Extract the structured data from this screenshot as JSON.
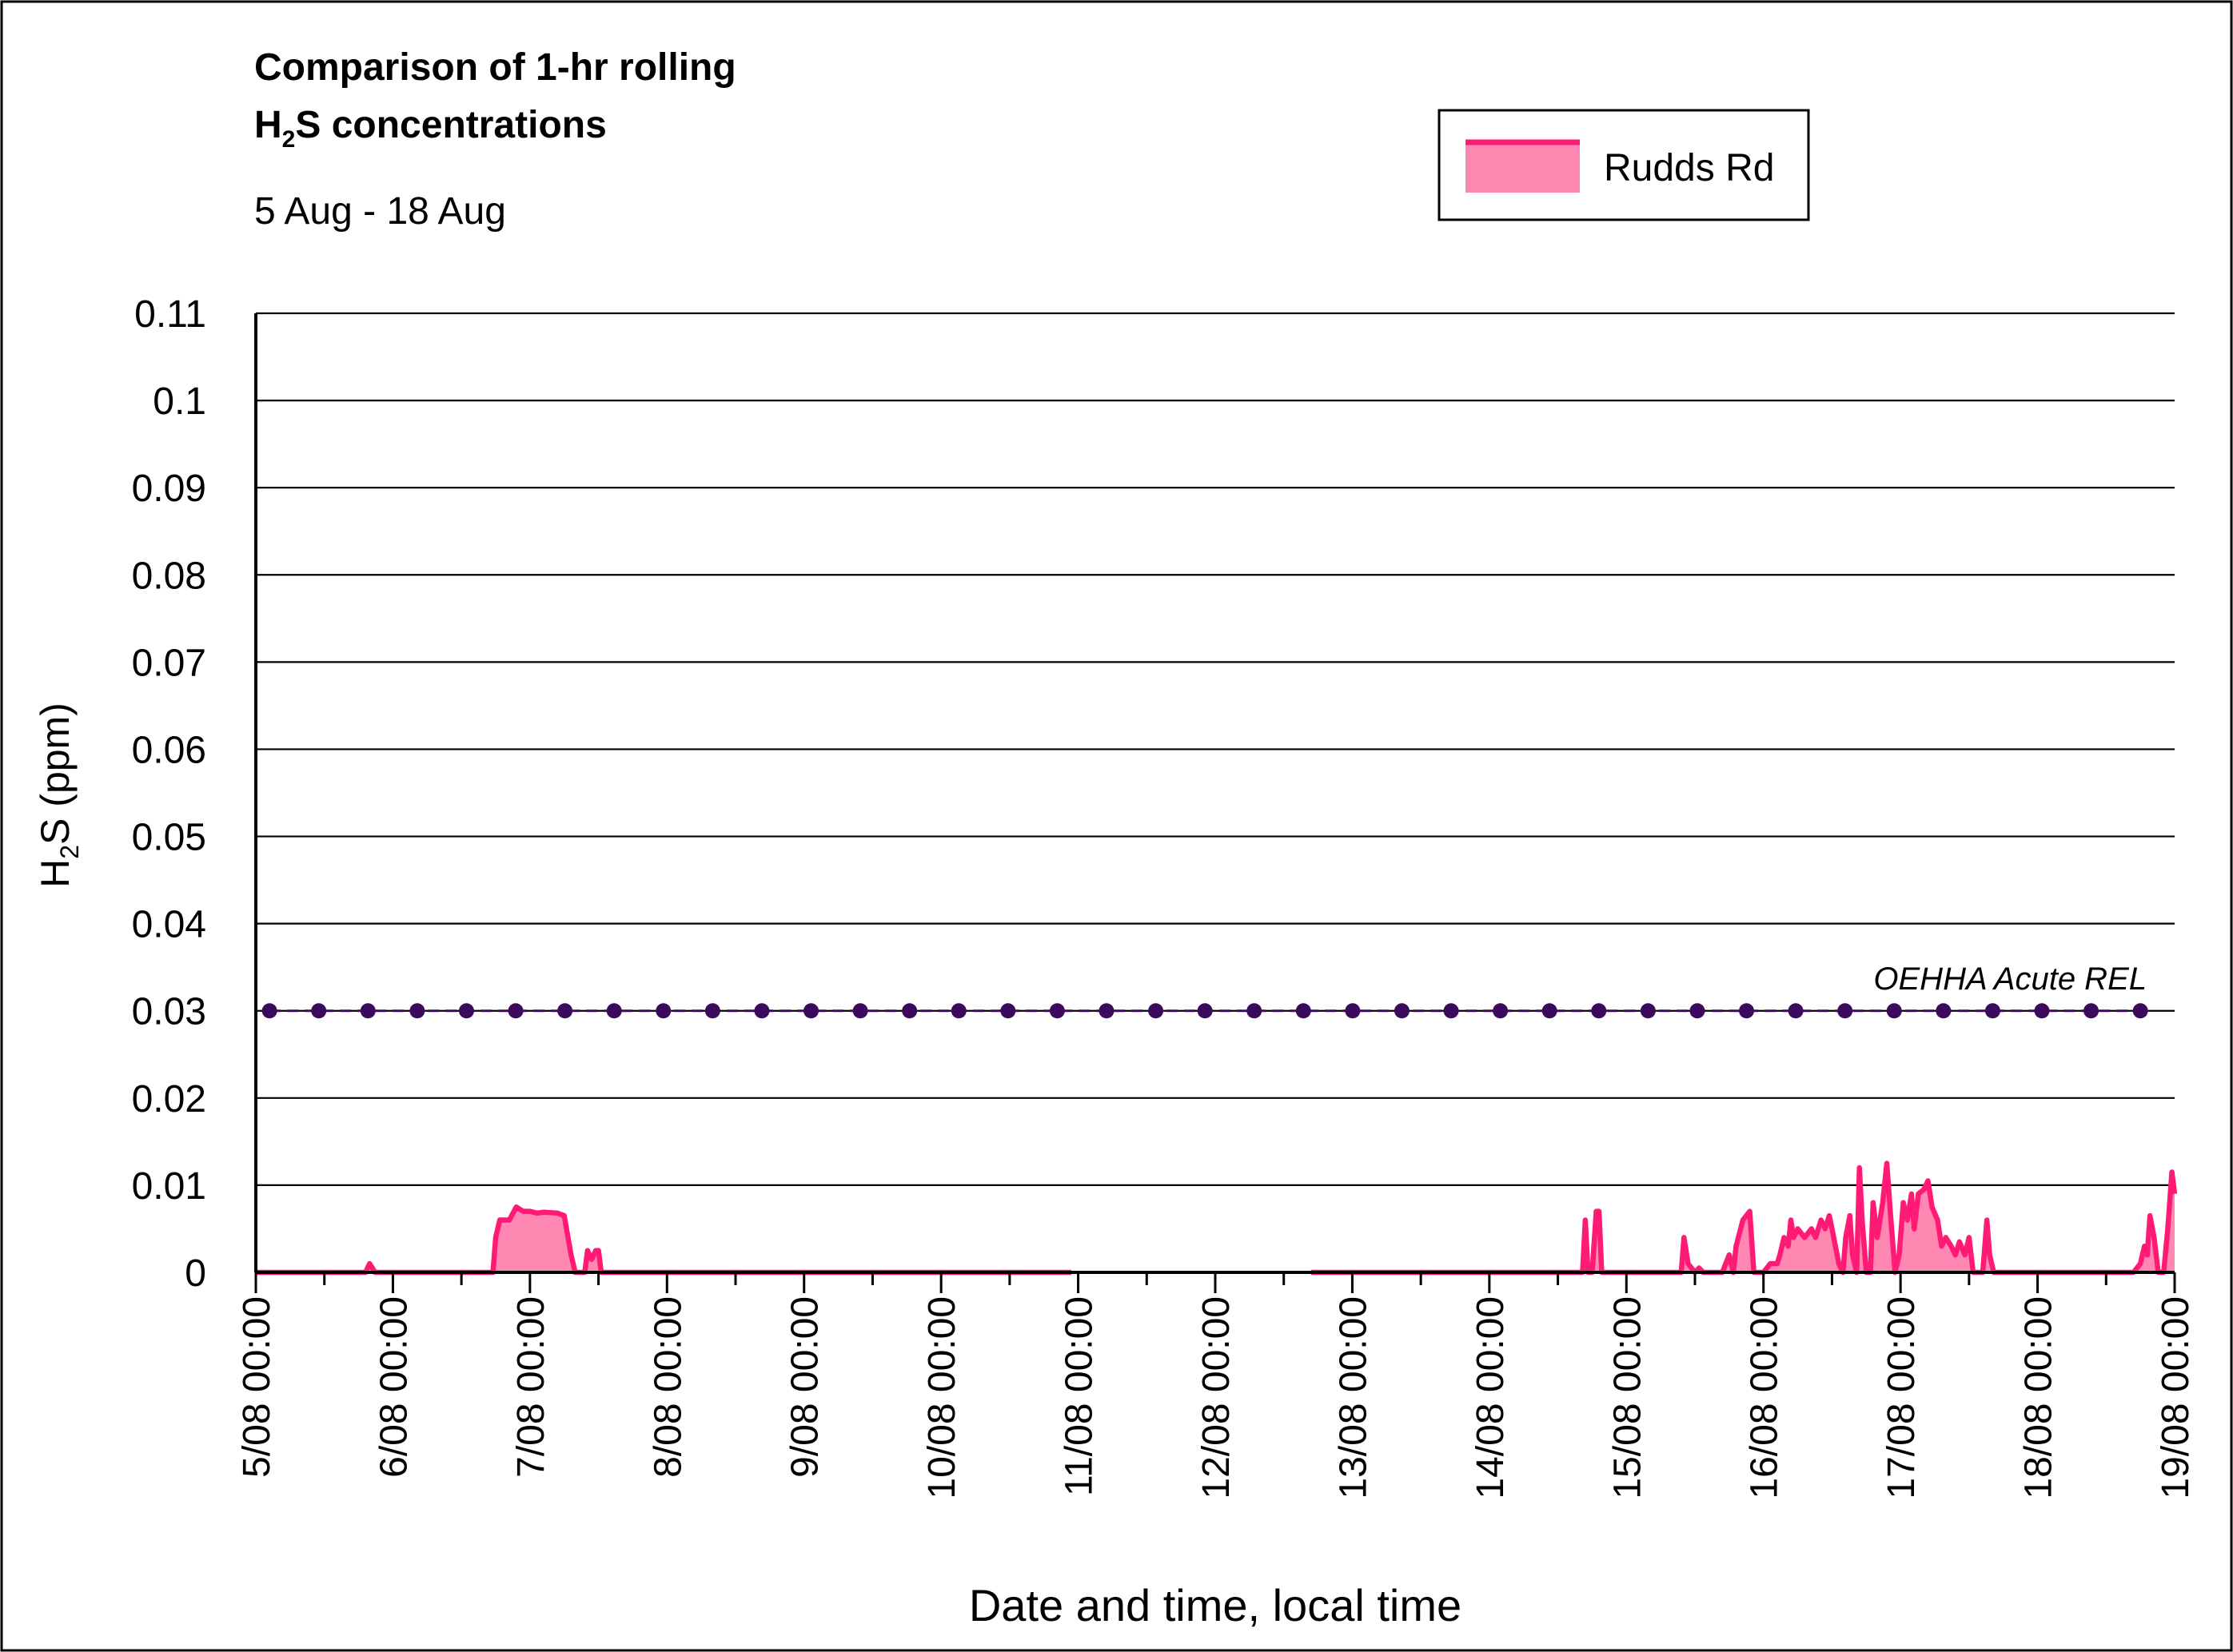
{
  "title_line1": "Comparison of 1-hr rolling",
  "title_line2_prefix": "H",
  "title_line2_sub": "2",
  "title_line2_suffix": "S concentrations",
  "subtitle": "5 Aug - 18 Aug",
  "legend": {
    "label": "Rudds Rd"
  },
  "reference_line": {
    "label": "OEHHA Acute REL",
    "value": 0.03
  },
  "colors": {
    "series": "#ff1a75",
    "series_fill": "#ff88b3",
    "reference": "#3b0a5c",
    "grid": "#000000"
  },
  "chart_data": {
    "type": "area",
    "title": "Comparison of 1-hr rolling H2S concentrations",
    "subtitle": "5 Aug - 18 Aug",
    "xlabel": "Date and time, local time",
    "ylabel": "H2S (ppm)",
    "ylim": [
      0,
      0.11
    ],
    "yticks": [
      0,
      0.01,
      0.02,
      0.03,
      0.04,
      0.05,
      0.06,
      0.07,
      0.08,
      0.09,
      0.1,
      0.11
    ],
    "ytick_labels": [
      "0",
      "0.01",
      "0.02",
      "0.03",
      "0.04",
      "0.05",
      "0.06",
      "0.07",
      "0.08",
      "0.09",
      "0.1",
      "0.11"
    ],
    "xlim": [
      "5/08 00:00",
      "19/08 00:00"
    ],
    "xtick_labels": [
      "5/08 00:00",
      "6/08 00:00",
      "7/08 00:00",
      "8/08 00:00",
      "9/08 00:00",
      "10/08 00:00",
      "11/08 00:00",
      "12/08 00:00",
      "13/08 00:00",
      "14/08 00:00",
      "15/08 00:00",
      "16/08 00:00",
      "17/08 00:00",
      "18/08 00:00",
      "19/08 00:00"
    ],
    "grid": true,
    "legend_position": "top-right",
    "series": [
      {
        "name": "Rudds Rd",
        "segments": [
          [
            [
              0.0,
              0
            ],
            [
              0.8,
              0
            ],
            [
              0.83,
              0.001
            ],
            [
              0.87,
              0
            ],
            [
              1.73,
              0
            ],
            [
              1.75,
              0.004
            ],
            [
              1.78,
              0.006
            ],
            [
              1.85,
              0.006
            ],
            [
              1.9,
              0.0075
            ],
            [
              1.95,
              0.007
            ],
            [
              2.0,
              0.007
            ],
            [
              2.05,
              0.0068
            ],
            [
              2.1,
              0.0069
            ],
            [
              2.2,
              0.0068
            ],
            [
              2.25,
              0.0065
            ],
            [
              2.3,
              0.002
            ],
            [
              2.33,
              0
            ],
            [
              2.4,
              0
            ],
            [
              2.42,
              0.0025
            ],
            [
              2.45,
              0.0015
            ],
            [
              2.48,
              0.0025
            ],
            [
              2.5,
              0.0025
            ],
            [
              2.52,
              0
            ],
            [
              3.0,
              0
            ],
            [
              4.0,
              0
            ],
            [
              5.0,
              0
            ],
            [
              5.95,
              0
            ]
          ],
          [
            [
              7.7,
              0
            ],
            [
              8.0,
              0
            ],
            [
              9.0,
              0
            ],
            [
              9.68,
              0
            ],
            [
              9.7,
              0.006
            ],
            [
              9.72,
              0
            ],
            [
              9.75,
              0
            ],
            [
              9.78,
              0.007
            ],
            [
              9.8,
              0.007
            ],
            [
              9.82,
              0
            ],
            [
              10.4,
              0
            ],
            [
              10.42,
              0.004
            ],
            [
              10.45,
              0.001
            ],
            [
              10.5,
              0
            ],
            [
              10.53,
              0.0005
            ],
            [
              10.56,
              0
            ],
            [
              10.7,
              0
            ],
            [
              10.75,
              0.002
            ],
            [
              10.78,
              0
            ],
            [
              10.8,
              0.003
            ],
            [
              10.85,
              0.006
            ],
            [
              10.9,
              0.007
            ],
            [
              10.93,
              0
            ],
            [
              11.0,
              0
            ],
            [
              11.05,
              0.001
            ],
            [
              11.1,
              0.001
            ],
            [
              11.12,
              0.002
            ],
            [
              11.15,
              0.004
            ],
            [
              11.18,
              0.003
            ],
            [
              11.2,
              0.006
            ],
            [
              11.22,
              0.004
            ],
            [
              11.25,
              0.005
            ],
            [
              11.3,
              0.004
            ],
            [
              11.35,
              0.005
            ],
            [
              11.38,
              0.004
            ],
            [
              11.42,
              0.006
            ],
            [
              11.45,
              0.005
            ],
            [
              11.48,
              0.0065
            ],
            [
              11.5,
              0.005
            ],
            [
              11.55,
              0.001
            ],
            [
              11.58,
              0
            ],
            [
              11.6,
              0.004
            ],
            [
              11.63,
              0.0065
            ],
            [
              11.65,
              0.002
            ],
            [
              11.68,
              0
            ],
            [
              11.7,
              0.012
            ],
            [
              11.72,
              0.006
            ],
            [
              11.75,
              0
            ],
            [
              11.78,
              0
            ],
            [
              11.8,
              0.008
            ],
            [
              11.83,
              0.004
            ],
            [
              11.87,
              0.008
            ],
            [
              11.9,
              0.0125
            ],
            [
              11.93,
              0.006
            ],
            [
              11.96,
              0
            ],
            [
              11.99,
              0.002
            ],
            [
              12.02,
              0.008
            ],
            [
              12.05,
              0.006
            ],
            [
              12.08,
              0.009
            ],
            [
              12.1,
              0.005
            ],
            [
              12.13,
              0.009
            ],
            [
              12.17,
              0.0095
            ],
            [
              12.2,
              0.0105
            ],
            [
              12.23,
              0.0075
            ],
            [
              12.27,
              0.006
            ],
            [
              12.3,
              0.003
            ],
            [
              12.33,
              0.004
            ],
            [
              12.37,
              0.003
            ],
            [
              12.4,
              0.002
            ],
            [
              12.43,
              0.0035
            ],
            [
              12.47,
              0.002
            ],
            [
              12.5,
              0.004
            ],
            [
              12.53,
              0
            ],
            [
              12.6,
              0
            ],
            [
              12.63,
              0.006
            ],
            [
              12.65,
              0.002
            ],
            [
              12.68,
              0
            ],
            [
              13.0,
              0
            ],
            [
              13.7,
              0
            ],
            [
              13.75,
              0.001
            ],
            [
              13.78,
              0.003
            ],
            [
              13.8,
              0.002
            ],
            [
              13.82,
              0.0065
            ],
            [
              13.85,
              0.004
            ],
            [
              13.88,
              0
            ],
            [
              13.92,
              0
            ],
            [
              13.95,
              0.005
            ],
            [
              13.98,
              0.0115
            ],
            [
              14.0,
              0.009
            ]
          ]
        ]
      },
      {
        "name": "OEHHA Acute REL",
        "constant_value": 0.03,
        "x_range": [
          0.1,
          13.75
        ]
      }
    ]
  }
}
